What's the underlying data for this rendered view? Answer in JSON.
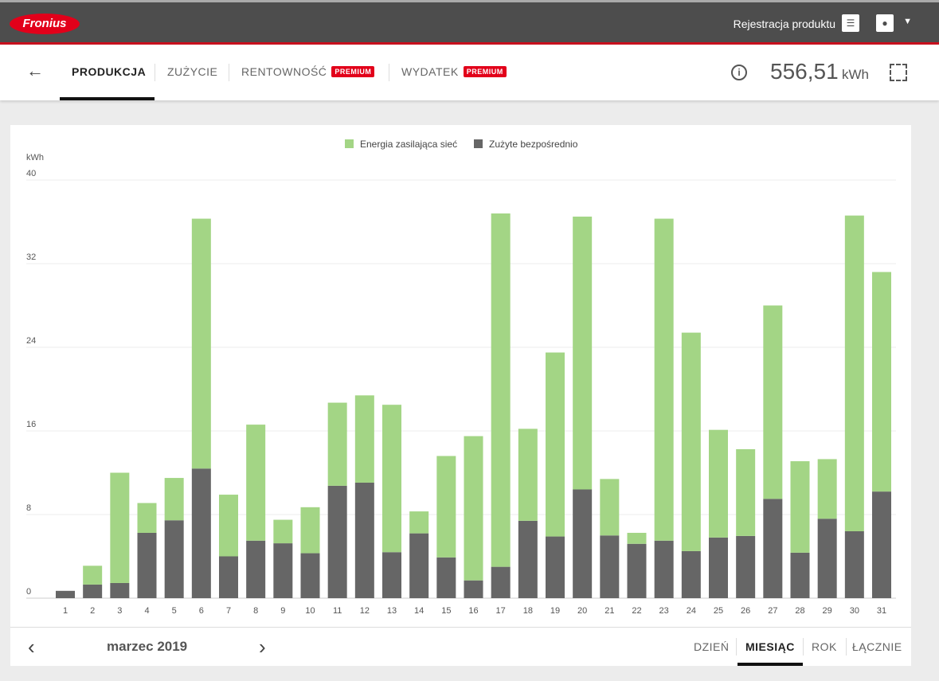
{
  "header": {
    "logo": "Fronius",
    "product_registration": "Rejestracja produktu"
  },
  "tabs": [
    {
      "label": "PRODUKCJA"
    },
    {
      "label": "ZUŻYCIE"
    },
    {
      "label": "RENTOWNOŚĆ",
      "badge": "PREMIUM"
    },
    {
      "label": "WYDATEK",
      "badge": "PREMIUM"
    }
  ],
  "summary": {
    "value": "556,51",
    "unit": "kWh"
  },
  "footer": {
    "period": "marzec 2019",
    "ranges": [
      "DZIEŃ",
      "MIESIĄC",
      "ROK",
      "ŁĄCZNIE"
    ],
    "active_range": "MIESIĄC"
  },
  "colors": {
    "feed_in": "#a3d585",
    "direct": "#666666",
    "accent": "#e2001a"
  },
  "chart_data": {
    "type": "bar",
    "stacked": true,
    "ylabel": "kWh",
    "ylim": [
      0,
      40
    ],
    "yticks": [
      0,
      8,
      16,
      24,
      32,
      40
    ],
    "grid": true,
    "legend": "top-center",
    "categories": [
      "1",
      "2",
      "3",
      "4",
      "5",
      "6",
      "7",
      "8",
      "9",
      "10",
      "11",
      "12",
      "13",
      "14",
      "15",
      "16",
      "17",
      "18",
      "19",
      "20",
      "21",
      "22",
      "23",
      "24",
      "25",
      "26",
      "27",
      "28",
      "29",
      "30",
      "31"
    ],
    "series": [
      {
        "name": "Zużyte bezpośrednio",
        "color": "#666666",
        "values": [
          0.7,
          1.3,
          1.45,
          6.25,
          7.45,
          12.4,
          4.0,
          5.5,
          5.25,
          4.3,
          10.75,
          11.05,
          4.4,
          6.2,
          3.9,
          1.7,
          3.0,
          7.4,
          5.9,
          10.4,
          6.0,
          5.2,
          5.5,
          4.5,
          5.8,
          5.95,
          9.5,
          4.35,
          7.6,
          6.4,
          10.2
        ]
      },
      {
        "name": "Energia zasilająca sieć",
        "color": "#a3d585",
        "values": [
          0.0,
          1.8,
          10.55,
          2.85,
          4.05,
          23.9,
          5.9,
          11.1,
          2.25,
          4.4,
          7.95,
          8.35,
          14.1,
          2.1,
          9.7,
          13.8,
          33.8,
          8.8,
          17.6,
          26.1,
          5.4,
          1.05,
          30.8,
          20.9,
          10.3,
          8.3,
          18.5,
          8.75,
          5.7,
          30.2,
          21.0
        ]
      }
    ]
  }
}
